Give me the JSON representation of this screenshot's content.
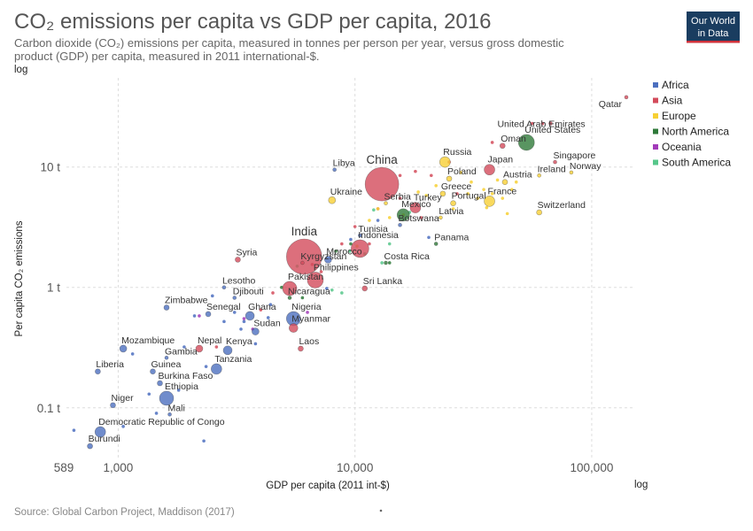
{
  "header": {
    "title": "CO₂ emissions per capita vs GDP per capita, 2016",
    "subtitle_line1": "Carbon dioxide (CO₂) emissions per capita, measured in tonnes per person per year, versus gross domestic",
    "subtitle_line2": "product (GDP) per capita, measured in 2011 international-$.",
    "scale_note": "log"
  },
  "logo": {
    "line1": "Our World",
    "line2": "in Data",
    "bg": "#1a3d60",
    "accent": "#d0323b"
  },
  "footer": {
    "source": "Source: Global Carbon Project, Maddison (2017)"
  },
  "chart_data": {
    "type": "scatter",
    "title": "CO₂ emissions per capita vs GDP per capita, 2016",
    "xlabel": "GDP per capita (2011 int-$)",
    "ylabel": "Per capita CO₂ emissions",
    "x_scale": "log",
    "y_scale": "log",
    "x_scale_label": "log",
    "xlim": [
      589,
      150000
    ],
    "ylim": [
      0.042,
      55
    ],
    "x_ticks": [
      {
        "value": 589,
        "label": "589"
      },
      {
        "value": 1000,
        "label": "1,000"
      },
      {
        "value": 10000,
        "label": "10,000"
      },
      {
        "value": 100000,
        "label": "100,000"
      }
    ],
    "y_ticks": [
      {
        "value": 0.1,
        "label": "0.1 t"
      },
      {
        "value": 1,
        "label": "1 t"
      },
      {
        "value": 10,
        "label": "10 t"
      }
    ],
    "grid": true,
    "legend_position": "top-right",
    "colors": {
      "Africa": "#4c6fbf",
      "Asia": "#d34b5b",
      "Europe": "#f7d034",
      "North America": "#2f7a3a",
      "Oceania": "#a23bb9",
      "South America": "#57c78b"
    },
    "legend": [
      "Africa",
      "Asia",
      "Europe",
      "North America",
      "Oceania",
      "South America"
    ],
    "labeled_points": [
      {
        "name": "Qatar",
        "x": 140000,
        "y": 38,
        "region": "Asia",
        "size": 2,
        "label_pos": "left"
      },
      {
        "name": "United Arab Emirates",
        "x": 67000,
        "y": 23,
        "region": "Asia",
        "size": 2,
        "label_pos": "marker-left"
      },
      {
        "name": "United States",
        "x": 53000,
        "y": 16,
        "region": "North America",
        "size": 9
      },
      {
        "name": "Oman",
        "x": 42000,
        "y": 15,
        "region": "Asia",
        "size": 3
      },
      {
        "name": "Russia",
        "x": 24000,
        "y": 11,
        "region": "Europe",
        "size": 6
      },
      {
        "name": "Singapore",
        "x": 70000,
        "y": 11,
        "region": "Asia",
        "size": 2
      },
      {
        "name": "Japan",
        "x": 37000,
        "y": 9.5,
        "region": "Asia",
        "size": 6
      },
      {
        "name": "Norway",
        "x": 82000,
        "y": 9.0,
        "region": "Europe",
        "size": 2
      },
      {
        "name": "Ireland",
        "x": 60000,
        "y": 8.5,
        "region": "Europe",
        "size": 2
      },
      {
        "name": "Poland",
        "x": 25000,
        "y": 8.0,
        "region": "Europe",
        "size": 3
      },
      {
        "name": "Austria",
        "x": 43000,
        "y": 7.5,
        "region": "Europe",
        "size": 3
      },
      {
        "name": "China",
        "x": 13000,
        "y": 7.2,
        "region": "Asia",
        "size": 19
      },
      {
        "name": "Libya",
        "x": 8200,
        "y": 9.5,
        "region": "Africa",
        "size": 2
      },
      {
        "name": "Greece",
        "x": 23500,
        "y": 6.0,
        "region": "Europe",
        "size": 3
      },
      {
        "name": "Ukraine",
        "x": 8000,
        "y": 5.3,
        "region": "Europe",
        "size": 4
      },
      {
        "name": "Serbia",
        "x": 13500,
        "y": 5.0,
        "region": "Europe",
        "size": 2
      },
      {
        "name": "Portugal",
        "x": 26000,
        "y": 5.0,
        "region": "Europe",
        "size": 3
      },
      {
        "name": "France",
        "x": 37000,
        "y": 5.2,
        "region": "Europe",
        "size": 6
      },
      {
        "name": "Turkey",
        "x": 18000,
        "y": 4.6,
        "region": "Asia",
        "size": 6
      },
      {
        "name": "Switzerland",
        "x": 60000,
        "y": 4.2,
        "region": "Europe",
        "size": 3
      },
      {
        "name": "Mexico",
        "x": 16000,
        "y": 4.0,
        "region": "North America",
        "size": 7
      },
      {
        "name": "Latvia",
        "x": 23000,
        "y": 3.8,
        "region": "Europe",
        "size": 2
      },
      {
        "name": "Botswana",
        "x": 15500,
        "y": 3.3,
        "region": "Africa",
        "size": 2
      },
      {
        "name": "Tunisia",
        "x": 10500,
        "y": 2.7,
        "region": "Africa",
        "size": 2
      },
      {
        "name": "Panama",
        "x": 22000,
        "y": 2.3,
        "region": "North America",
        "size": 2
      },
      {
        "name": "Indonesia",
        "x": 10500,
        "y": 2.1,
        "region": "Asia",
        "size": 10
      },
      {
        "name": "India",
        "x": 6100,
        "y": 1.8,
        "region": "Asia",
        "size": 20
      },
      {
        "name": "Morocco",
        "x": 7700,
        "y": 1.7,
        "region": "Africa",
        "size": 4
      },
      {
        "name": "Kyrgyzstan",
        "x": 6000,
        "y": 1.6,
        "region": "Asia",
        "size": 2
      },
      {
        "name": "Costa Rica",
        "x": 13500,
        "y": 1.6,
        "region": "North America",
        "size": 2
      },
      {
        "name": "Syria",
        "x": 3200,
        "y": 1.7,
        "region": "Asia",
        "size": 3
      },
      {
        "name": "Philippines",
        "x": 6800,
        "y": 1.15,
        "region": "Asia",
        "size": 9
      },
      {
        "name": "Lesotho",
        "x": 2800,
        "y": 1.0,
        "region": "Africa",
        "size": 2
      },
      {
        "name": "Pakistan",
        "x": 5300,
        "y": 0.98,
        "region": "Asia",
        "size": 8
      },
      {
        "name": "Sri Lanka",
        "x": 11000,
        "y": 0.98,
        "region": "Asia",
        "size": 3
      },
      {
        "name": "Djibouti",
        "x": 3100,
        "y": 0.82,
        "region": "Africa",
        "size": 2
      },
      {
        "name": "Nicaragua",
        "x": 5300,
        "y": 0.82,
        "region": "North America",
        "size": 2
      },
      {
        "name": "Zimbabwe",
        "x": 1600,
        "y": 0.68,
        "region": "Africa",
        "size": 3
      },
      {
        "name": "Senegal",
        "x": 2400,
        "y": 0.6,
        "region": "Africa",
        "size": 3
      },
      {
        "name": "Ghana",
        "x": 3600,
        "y": 0.58,
        "region": "Africa",
        "size": 5
      },
      {
        "name": "Nigeria",
        "x": 5500,
        "y": 0.55,
        "region": "Africa",
        "size": 8
      },
      {
        "name": "Myanmar",
        "x": 5500,
        "y": 0.46,
        "region": "Asia",
        "size": 5
      },
      {
        "name": "Sudan",
        "x": 3800,
        "y": 0.43,
        "region": "Africa",
        "size": 4
      },
      {
        "name": "Mozambique",
        "x": 1050,
        "y": 0.31,
        "region": "Africa",
        "size": 4
      },
      {
        "name": "Nepal",
        "x": 2200,
        "y": 0.31,
        "region": "Asia",
        "size": 4
      },
      {
        "name": "Kenya",
        "x": 2900,
        "y": 0.3,
        "region": "Africa",
        "size": 5
      },
      {
        "name": "Gambia",
        "x": 1600,
        "y": 0.26,
        "region": "Africa",
        "size": 2
      },
      {
        "name": "Laos",
        "x": 5900,
        "y": 0.31,
        "region": "Asia",
        "size": 3
      },
      {
        "name": "Liberia",
        "x": 820,
        "y": 0.2,
        "region": "Africa",
        "size": 3
      },
      {
        "name": "Guinea",
        "x": 1400,
        "y": 0.2,
        "region": "Africa",
        "size": 3
      },
      {
        "name": "Tanzania",
        "x": 2600,
        "y": 0.21,
        "region": "Africa",
        "size": 6
      },
      {
        "name": "Burkina Faso",
        "x": 1500,
        "y": 0.16,
        "region": "Africa",
        "size": 3
      },
      {
        "name": "Ethiopia",
        "x": 1600,
        "y": 0.12,
        "region": "Africa",
        "size": 8
      },
      {
        "name": "Niger",
        "x": 950,
        "y": 0.105,
        "region": "Africa",
        "size": 3
      },
      {
        "name": "Mali",
        "x": 1650,
        "y": 0.088,
        "region": "Africa",
        "size": 2
      },
      {
        "name": "Democratic Republic of Congo",
        "x": 840,
        "y": 0.063,
        "region": "Africa",
        "size": 6
      },
      {
        "name": "Burundi",
        "x": 760,
        "y": 0.048,
        "region": "Africa",
        "size": 3
      }
    ],
    "unlabeled_points": [
      {
        "x": 650,
        "y": 0.065,
        "region": "Africa"
      },
      {
        "x": 1050,
        "y": 0.07,
        "region": "Africa"
      },
      {
        "x": 2300,
        "y": 0.053,
        "region": "Africa"
      },
      {
        "x": 1450,
        "y": 0.09,
        "region": "Africa"
      },
      {
        "x": 1350,
        "y": 0.13,
        "region": "Africa"
      },
      {
        "x": 1800,
        "y": 0.14,
        "region": "Africa"
      },
      {
        "x": 1900,
        "y": 0.32,
        "region": "Africa"
      },
      {
        "x": 2100,
        "y": 0.58,
        "region": "Africa"
      },
      {
        "x": 2800,
        "y": 0.52,
        "region": "Africa"
      },
      {
        "x": 3300,
        "y": 0.45,
        "region": "Africa"
      },
      {
        "x": 3400,
        "y": 0.52,
        "region": "Africa"
      },
      {
        "x": 3100,
        "y": 0.62,
        "region": "Africa"
      },
      {
        "x": 4300,
        "y": 0.56,
        "region": "Africa"
      },
      {
        "x": 4400,
        "y": 0.72,
        "region": "Africa"
      },
      {
        "x": 3800,
        "y": 0.34,
        "region": "Africa"
      },
      {
        "x": 2500,
        "y": 0.85,
        "region": "Africa"
      },
      {
        "x": 7600,
        "y": 0.98,
        "region": "Africa"
      },
      {
        "x": 9600,
        "y": 2.5,
        "region": "Africa"
      },
      {
        "x": 12500,
        "y": 3.6,
        "region": "Africa"
      },
      {
        "x": 20500,
        "y": 2.6,
        "region": "Africa"
      },
      {
        "x": 1150,
        "y": 0.28,
        "region": "Africa"
      },
      {
        "x": 2350,
        "y": 0.22,
        "region": "Africa"
      },
      {
        "x": 8800,
        "y": 2.3,
        "region": "Asia"
      },
      {
        "x": 15500,
        "y": 8.5,
        "region": "Asia"
      },
      {
        "x": 18000,
        "y": 9.2,
        "region": "Asia"
      },
      {
        "x": 21000,
        "y": 8.5,
        "region": "Asia"
      },
      {
        "x": 19000,
        "y": 3.8,
        "region": "Asia"
      },
      {
        "x": 10000,
        "y": 3.2,
        "region": "Asia"
      },
      {
        "x": 11500,
        "y": 2.3,
        "region": "Asia"
      },
      {
        "x": 7200,
        "y": 1.35,
        "region": "Asia"
      },
      {
        "x": 4000,
        "y": 0.65,
        "region": "Asia"
      },
      {
        "x": 56000,
        "y": 23,
        "region": "Asia"
      },
      {
        "x": 38000,
        "y": 16,
        "region": "Asia"
      },
      {
        "x": 62000,
        "y": 23,
        "region": "Asia"
      },
      {
        "x": 25000,
        "y": 11,
        "region": "Asia"
      },
      {
        "x": 12500,
        "y": 4.5,
        "region": "Asia"
      },
      {
        "x": 27000,
        "y": 6,
        "region": "Asia"
      },
      {
        "x": 15500,
        "y": 5.5,
        "region": "Asia"
      },
      {
        "x": 6600,
        "y": 1.55,
        "region": "Asia"
      },
      {
        "x": 4500,
        "y": 0.9,
        "region": "Asia"
      },
      {
        "x": 2600,
        "y": 0.32,
        "region": "Asia"
      },
      {
        "x": 16000,
        "y": 4.0,
        "region": "Europe"
      },
      {
        "x": 18500,
        "y": 6.2,
        "region": "Europe"
      },
      {
        "x": 20000,
        "y": 5.8,
        "region": "Europe"
      },
      {
        "x": 22000,
        "y": 7.0,
        "region": "Europe"
      },
      {
        "x": 28000,
        "y": 9.0,
        "region": "Europe"
      },
      {
        "x": 30000,
        "y": 6.0,
        "region": "Europe"
      },
      {
        "x": 31000,
        "y": 7.5,
        "region": "Europe"
      },
      {
        "x": 33000,
        "y": 5.5,
        "region": "Europe"
      },
      {
        "x": 35000,
        "y": 6.5,
        "region": "Europe"
      },
      {
        "x": 36000,
        "y": 4.6,
        "region": "Europe"
      },
      {
        "x": 38000,
        "y": 6.0,
        "region": "Europe"
      },
      {
        "x": 40000,
        "y": 7.8,
        "region": "Europe"
      },
      {
        "x": 42000,
        "y": 5.5,
        "region": "Europe"
      },
      {
        "x": 44000,
        "y": 4.1,
        "region": "Europe"
      },
      {
        "x": 46000,
        "y": 6.5,
        "region": "Europe"
      },
      {
        "x": 48000,
        "y": 7.5,
        "region": "Europe"
      },
      {
        "x": 26000,
        "y": 4.5,
        "region": "Europe"
      },
      {
        "x": 14000,
        "y": 3.8,
        "region": "Europe"
      },
      {
        "x": 12500,
        "y": 4.5,
        "region": "Europe"
      },
      {
        "x": 11500,
        "y": 3.6,
        "region": "Europe"
      },
      {
        "x": 10200,
        "y": 2.2,
        "region": "Europe"
      },
      {
        "x": 14000,
        "y": 1.6,
        "region": "North America"
      },
      {
        "x": 8300,
        "y": 2.0,
        "region": "North America"
      },
      {
        "x": 6000,
        "y": 0.82,
        "region": "North America"
      },
      {
        "x": 9600,
        "y": 2.3,
        "region": "North America"
      },
      {
        "x": 4900,
        "y": 1.0,
        "region": "North America"
      },
      {
        "x": 14000,
        "y": 2.3,
        "region": "South America"
      },
      {
        "x": 13000,
        "y": 1.6,
        "region": "South America"
      },
      {
        "x": 17000,
        "y": 4.2,
        "region": "South America"
      },
      {
        "x": 9500,
        "y": 2.0,
        "region": "South America"
      },
      {
        "x": 11000,
        "y": 1.9,
        "region": "South America"
      },
      {
        "x": 8000,
        "y": 0.95,
        "region": "South America"
      },
      {
        "x": 8800,
        "y": 0.9,
        "region": "South America"
      },
      {
        "x": 12000,
        "y": 4.4,
        "region": "South America"
      },
      {
        "x": 5700,
        "y": 1.5,
        "region": "South America"
      },
      {
        "x": 3700,
        "y": 0.45,
        "region": "Oceania"
      },
      {
        "x": 6300,
        "y": 0.62,
        "region": "Oceania"
      },
      {
        "x": 3400,
        "y": 0.55,
        "region": "Oceania"
      },
      {
        "x": 2200,
        "y": 0.58,
        "region": "Oceania"
      }
    ]
  }
}
